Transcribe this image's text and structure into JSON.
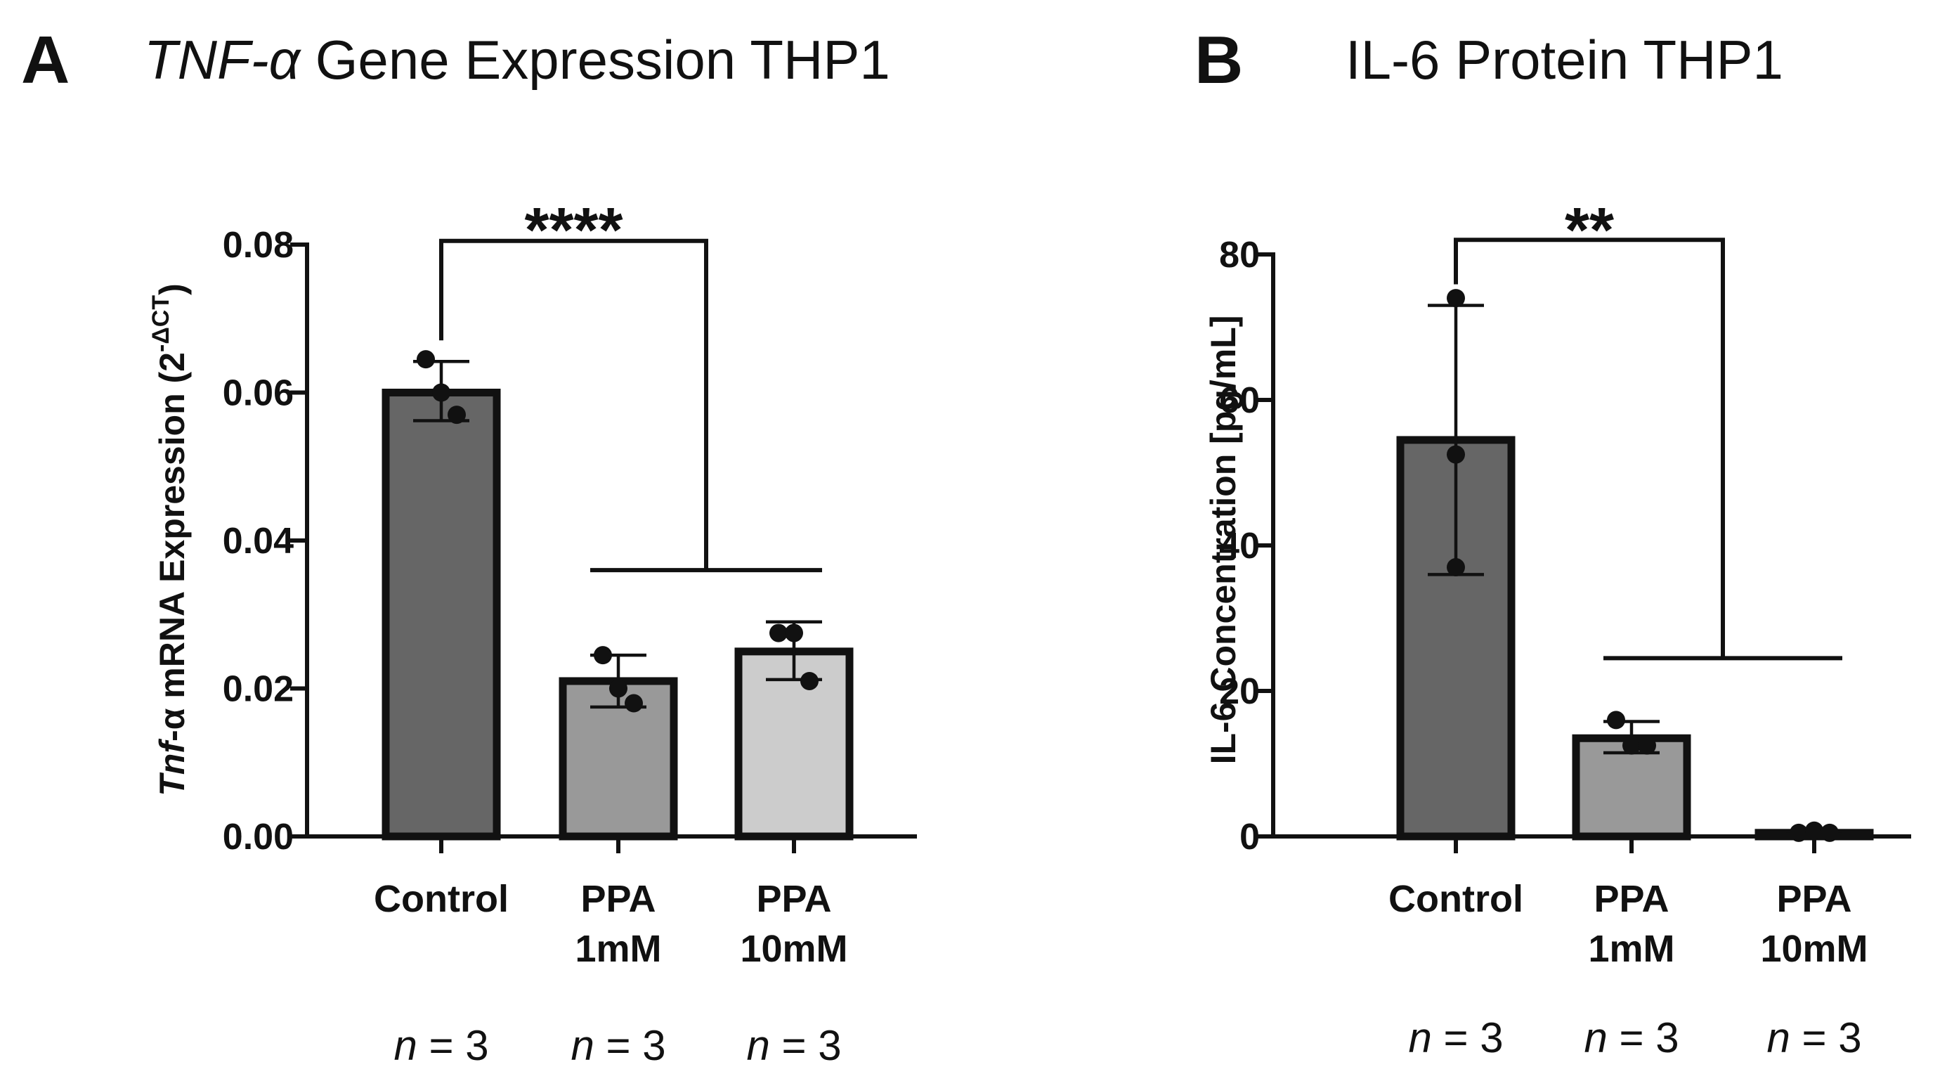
{
  "chart_data": [
    {
      "type": "bar",
      "panel_letter": "A",
      "title_italic": "TNF-α",
      "title_rest": " Gene Expression THP1",
      "ylabel_italic": "Tnf",
      "ylabel_main": "-α mRNA Expression  (2",
      "ylabel_sup": "-ΔCT",
      "ylabel_end": ")",
      "ylim": [
        0,
        0.08
      ],
      "yticks": [
        "0.00",
        "0.02",
        "0.04",
        "0.06",
        "0.08"
      ],
      "categories": [
        {
          "line1": "Control",
          "line2": ""
        },
        {
          "line1": "PPA",
          "line2": "1mM"
        },
        {
          "line1": "PPA",
          "line2": "10mM"
        }
      ],
      "values": [
        0.06,
        0.021,
        0.025
      ],
      "error": [
        [
          0.0562,
          0.0642
        ],
        [
          0.0175,
          0.0245
        ],
        [
          0.0212,
          0.029
        ]
      ],
      "points": [
        [
          0.0645,
          0.06,
          0.057
        ],
        [
          0.0245,
          0.02,
          0.018
        ],
        [
          0.0275,
          0.0275,
          0.021
        ]
      ],
      "colors": [
        "#666666",
        "#999999",
        "#cccccc"
      ],
      "significance": "****",
      "bracket_top": 0.0805,
      "bracket_sub": 0.036,
      "n_labels": [
        {
          "italic": "n",
          "rest": " = 3"
        },
        {
          "italic": "n",
          "rest": " = 3"
        },
        {
          "italic": "n",
          "rest": " = 3"
        }
      ]
    },
    {
      "type": "bar",
      "panel_letter": "B",
      "title_italic": "",
      "title_rest": "IL-6 Protein THP1",
      "ylabel_italic": "",
      "ylabel_main": "IL-6 Concentration [pg/mL]",
      "ylabel_sup": "",
      "ylabel_end": "",
      "ylim": [
        0,
        80
      ],
      "yticks": [
        "0",
        "20",
        "40",
        "60",
        "80"
      ],
      "categories": [
        {
          "line1": "Control",
          "line2": ""
        },
        {
          "line1": "PPA",
          "line2": "1mM"
        },
        {
          "line1": "PPA",
          "line2": "10mM"
        }
      ],
      "values": [
        54.5,
        13.5,
        0.5
      ],
      "error": [
        [
          36.0,
          73.0
        ],
        [
          11.5,
          15.8
        ],
        [
          0.3,
          0.8
        ]
      ],
      "points": [
        [
          74.0,
          52.5,
          37.0
        ],
        [
          16.0,
          12.5,
          12.5
        ],
        [
          0.5,
          0.8,
          0.5
        ]
      ],
      "colors": [
        "#666666",
        "#999999",
        "#cccccc"
      ],
      "significance": "**",
      "bracket_top": 82,
      "bracket_sub": 24.5,
      "n_labels": [
        {
          "italic": "n",
          "rest": " = 3"
        },
        {
          "italic": "n",
          "rest": " = 3"
        },
        {
          "italic": "n",
          "rest": " = 3"
        }
      ]
    }
  ]
}
